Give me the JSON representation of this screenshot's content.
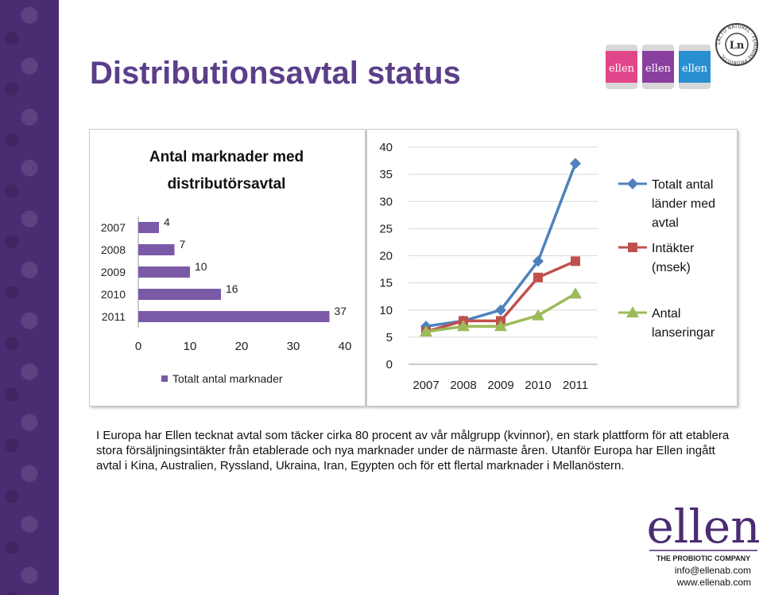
{
  "slide": {
    "title": "Distributionsavtal status",
    "body": "I Europa har Ellen tecknat avtal som täcker cirka 80 procent av vår målgrupp (kvinnor), en stark plattform för att etablera stora försäljningsintäkter från etablerade och nya marknader under de närmaste åren. Utanför Europa har Ellen ingått avtal i Kina, Australien, Ryssland, Ukraina, Iran, Egypten och för ett flertal marknader i Mellanöstern.",
    "contact_email": "info@ellenab.com",
    "contact_web": "www.ellenab.com"
  },
  "logo": {
    "brand_text": "ellen",
    "tagline": "THE PROBIOTIC COMPANY",
    "seal_text": "LACTO NATUREL · FEMININE PROBIOTIC",
    "product_text": "ellen"
  },
  "colors": {
    "purple": "#5b3f8a",
    "band": "#4b2c73",
    "bar": "#7a5aa6",
    "series_blue": "#4f81bd",
    "series_red": "#c0504d",
    "series_green": "#9bbb59"
  },
  "chart_data": [
    {
      "type": "bar",
      "orientation": "horizontal",
      "title": "Antal marknader med distributörsavtal",
      "categories": [
        "2007",
        "2008",
        "2009",
        "2010",
        "2011"
      ],
      "values": [
        4,
        7,
        10,
        16,
        37
      ],
      "xlim": [
        0,
        40
      ],
      "xticks": [
        "0",
        "10",
        "20",
        "30",
        "40"
      ],
      "legend": "Totalt antal marknader",
      "legend_position": "bottom",
      "grid": false
    },
    {
      "type": "line",
      "x": [
        "2007",
        "2008",
        "2009",
        "2010",
        "2011"
      ],
      "ylim": [
        0,
        40
      ],
      "yticks": [
        "0",
        "5",
        "10",
        "15",
        "20",
        "25",
        "30",
        "35",
        "40"
      ],
      "series": [
        {
          "name": "Totalt antal länder med avtal",
          "name_lines": [
            "Totalt antal",
            "länder med",
            "avtal"
          ],
          "values": [
            7,
            8,
            10,
            19,
            37
          ],
          "color": "#4f81bd",
          "marker": "diamond"
        },
        {
          "name": "Intäkter (msek)",
          "name_lines": [
            "Intäkter",
            "(msek)"
          ],
          "values": [
            6,
            8,
            8,
            16,
            19
          ],
          "color": "#c0504d",
          "marker": "square"
        },
        {
          "name": "Antal lanseringar",
          "name_lines": [
            "Antal",
            "lanseringar"
          ],
          "values": [
            6,
            7,
            7,
            9,
            13
          ],
          "color": "#9bbb59",
          "marker": "triangle"
        }
      ],
      "legend_position": "right",
      "grid": true
    }
  ]
}
